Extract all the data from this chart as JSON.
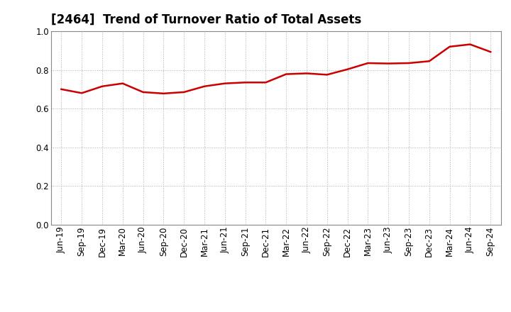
{
  "title": "[2464]  Trend of Turnover Ratio of Total Assets",
  "x_labels": [
    "Jun-19",
    "Sep-19",
    "Dec-19",
    "Mar-20",
    "Jun-20",
    "Sep-20",
    "Dec-20",
    "Mar-21",
    "Jun-21",
    "Sep-21",
    "Dec-21",
    "Mar-22",
    "Jun-22",
    "Sep-22",
    "Dec-22",
    "Mar-23",
    "Jun-23",
    "Sep-23",
    "Dec-23",
    "Mar-24",
    "Jun-24",
    "Sep-24"
  ],
  "values": [
    0.7,
    0.68,
    0.715,
    0.73,
    0.685,
    0.678,
    0.685,
    0.715,
    0.73,
    0.735,
    0.735,
    0.778,
    0.782,
    0.775,
    0.803,
    0.835,
    0.833,
    0.835,
    0.845,
    0.92,
    0.932,
    0.893
  ],
  "line_color": "#cc0000",
  "line_width": 1.8,
  "ylim": [
    0.0,
    1.0
  ],
  "yticks": [
    0.0,
    0.2,
    0.4,
    0.6,
    0.8,
    1.0
  ],
  "grid_color": "#b0b0b0",
  "bg_color": "#ffffff",
  "plot_bg_color": "#ffffff",
  "title_fontsize": 12,
  "tick_fontsize": 8.5
}
